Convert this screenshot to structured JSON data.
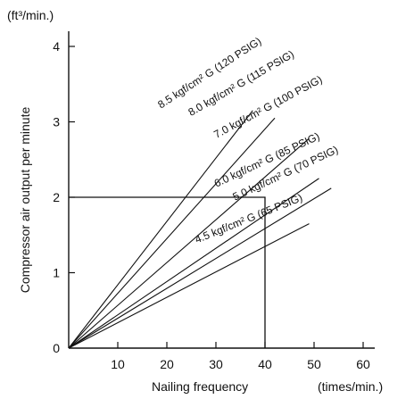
{
  "chart_data": {
    "type": "line",
    "title": "",
    "xlabel": "Nailing frequency",
    "xunit": "(times/min.)",
    "ylabel": "Compressor air output per minute",
    "yunit": "(ft³/min.)",
    "xlim": [
      0,
      60
    ],
    "ylim": [
      0,
      4
    ],
    "xticks": [
      10,
      20,
      30,
      40,
      50,
      60
    ],
    "yticks": [
      0,
      1,
      2,
      3,
      4
    ],
    "grid": false,
    "series": [
      {
        "name": "8.5 kgf/cm² G (120 PSIG)",
        "x": [
          0,
          37.5
        ],
        "y": [
          0,
          3.15
        ]
      },
      {
        "name": "8.0 kgf/cm² G (115 PSIG)",
        "x": [
          0,
          42.0
        ],
        "y": [
          0,
          3.05
        ]
      },
      {
        "name": "7.0 kgf/cm² G (100 PSIG)",
        "x": [
          0,
          49.0
        ],
        "y": [
          0,
          2.78
        ]
      },
      {
        "name": "6.0 kgf/cm² G (85 PSIG)",
        "x": [
          0,
          51.0
        ],
        "y": [
          0,
          2.25
        ]
      },
      {
        "name": "5.0 kgf/cm² G (70 PSIG)",
        "x": [
          0,
          53.5
        ],
        "y": [
          0,
          2.12
        ]
      },
      {
        "name": "4.5 kgf/cm² G (65 PSIG)",
        "x": [
          0,
          49.0
        ],
        "y": [
          0,
          1.65
        ]
      }
    ],
    "reference_box": {
      "x": 40,
      "y": 2
    }
  }
}
